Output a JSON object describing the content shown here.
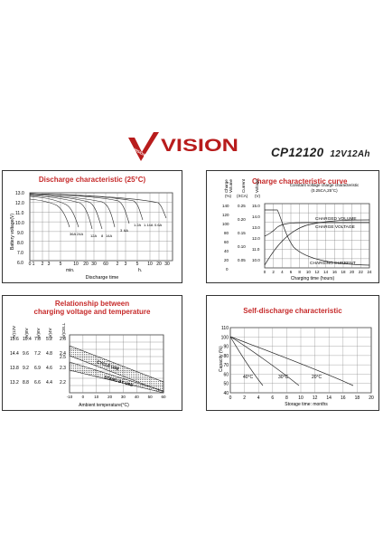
{
  "brand": {
    "name": "VISION",
    "tag": "VISION"
  },
  "model": {
    "name": "CP12120",
    "capacity": "12V12Ah"
  },
  "panels": {
    "discharge": {
      "title": "Discharge characteristic (25°C)",
      "ylabel": "Battery voltage(V)",
      "xlabel": "Discharge time",
      "y_ticks": [
        "13.0",
        "12.0",
        "11.0",
        "10.0",
        "9.0",
        "8.0",
        "7.0",
        "6.0"
      ],
      "x_ticks": [
        "0",
        "1",
        "2",
        "3",
        "5",
        "10",
        "20",
        "30",
        "60",
        "2",
        "3",
        "5",
        "10",
        "20",
        "30"
      ],
      "unit_min": "min.",
      "unit_h": "h.",
      "curve_labels": [
        "36A",
        "24A",
        "12A",
        "8",
        "14A",
        "3",
        "6A",
        "1.2A",
        "0.6A",
        "1.14A"
      ]
    },
    "charge": {
      "title": "Charge characteristic curve",
      "header_labels": [
        "Charge\nVolume",
        "Current",
        "Voltage"
      ],
      "header_units": [
        "(%)",
        "(XCA)",
        "(V)"
      ],
      "condition": "Constant voltage charge characteristic",
      "condition_sub": "(0.25CA,25°C)",
      "col_volume": [
        "140",
        "120",
        "100",
        "80",
        "60",
        "40",
        "20",
        "0"
      ],
      "col_current": [
        "0.25",
        "0.20",
        "0.15",
        "0.10",
        "0.05"
      ],
      "col_voltage": [
        "15.0",
        "14.0",
        "13.0",
        "12.0",
        "11.0",
        "10.0"
      ],
      "x_ticks": [
        "0",
        "2",
        "4",
        "6",
        "8",
        "10",
        "12",
        "14",
        "16",
        "18",
        "20",
        "22",
        "24"
      ],
      "xlabel": "Charging time (hours)",
      "curve_labels": [
        "CHARGED VOLUME",
        "CHARGE VOLTAGE",
        "CHARGING CURRENT"
      ]
    },
    "relationship": {
      "title_line1": "Relationship between",
      "title_line2": "charging voltage and temperature",
      "col_heads": [
        "(V)12V",
        "(V)8V",
        "(V)6V",
        "(V)4V",
        "(V)CELL"
      ],
      "rows": [
        [
          "15.6",
          "10.4",
          "7.8",
          "5.2",
          "2.6"
        ],
        [
          "14.4",
          "9.6",
          "7.2",
          "4.8",
          "2.4"
        ],
        [
          "13.8",
          "9.2",
          "6.9",
          "4.6",
          "2.3"
        ],
        [
          "13.2",
          "8.8",
          "6.6",
          "4.4",
          "2.2"
        ]
      ],
      "extra_tick": "2.5",
      "x_ticks": [
        "-10",
        "0",
        "10",
        "20",
        "30",
        "40",
        "50",
        "60"
      ],
      "xlabel": "Ambient temperature(°C)",
      "band_labels": [
        "CYCLE USE",
        "STAND BY USE"
      ]
    },
    "selfdischarge": {
      "title": "Self-discharge characteristic",
      "ylabel": "Capacity (%)",
      "y_ticks": [
        "110",
        "100",
        "90",
        "80",
        "70",
        "60",
        "50",
        "40"
      ],
      "x_ticks": [
        "0",
        "2",
        "4",
        "6",
        "8",
        "10",
        "12",
        "14",
        "16",
        "18",
        "20"
      ],
      "xlabel": "Storage time: months",
      "temp_labels": [
        "40°C",
        "30°C",
        "20°C"
      ]
    }
  },
  "colors": {
    "title_red": "#c62a2a",
    "logo_red": "#b81c1c",
    "grid": "#555555"
  }
}
